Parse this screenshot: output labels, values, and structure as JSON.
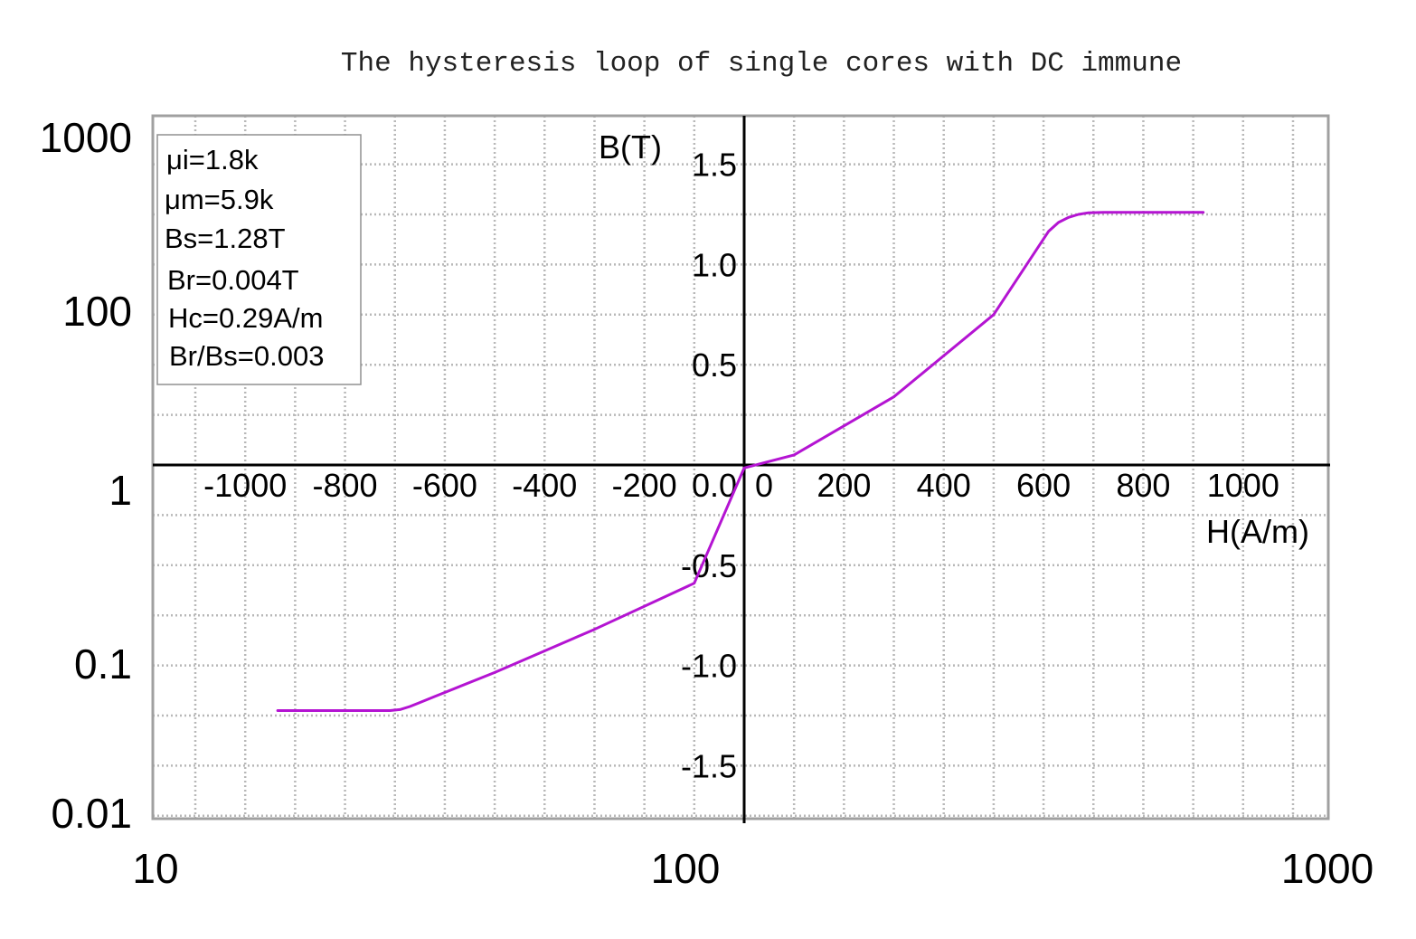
{
  "chart_data": {
    "type": "line",
    "title": "The hysteresis loop of single cores with DC immune",
    "background_log_axes": {
      "x_ticks": [
        "10",
        "100",
        "1000"
      ],
      "y_ticks": [
        "1000",
        "100",
        "1",
        "0.1",
        "0.01"
      ]
    },
    "xlabel": "H(A/m)",
    "ylabel": "B(T)",
    "xlim": [
      -1200,
      1200
    ],
    "ylim": [
      -1.76,
      1.76
    ],
    "x_ticks": [
      -1000,
      -800,
      -600,
      -400,
      -200,
      0,
      200,
      400,
      600,
      800,
      1000
    ],
    "x_tick_labels": [
      "-1000",
      "-800",
      "-600",
      "-400",
      "-200",
      "0",
      "200",
      "400",
      "600",
      "800",
      "1000"
    ],
    "y_ticks": [
      1.5,
      1.0,
      0.5,
      0.0,
      -0.5,
      -1.0,
      -1.5
    ],
    "y_tick_labels": [
      "1.5",
      "1.0",
      "0.5",
      "0.0",
      "-0.5",
      "-1.0",
      "-1.5"
    ],
    "grid": true,
    "info_box": [
      "μi=1.8k",
      "μm=5.9k",
      "Bs=1.28T",
      "Br=0.004T",
      "Hc=0.29A/m",
      "Br/Bs=0.003"
    ],
    "series": [
      {
        "color": "#b414d2",
        "x": [
          -935,
          -710,
          -690,
          -670,
          -650,
          -620,
          -500,
          -300,
          -100,
          0,
          100,
          300,
          500,
          610,
          630,
          650,
          670,
          690,
          720,
          800,
          920
        ],
        "y": [
          -1.225,
          -1.225,
          -1.22,
          -1.205,
          -1.185,
          -1.155,
          -1.035,
          -0.82,
          -0.59,
          -0.015,
          0.05,
          0.34,
          0.75,
          1.165,
          1.21,
          1.235,
          1.25,
          1.258,
          1.26,
          1.26,
          1.26
        ]
      }
    ]
  }
}
